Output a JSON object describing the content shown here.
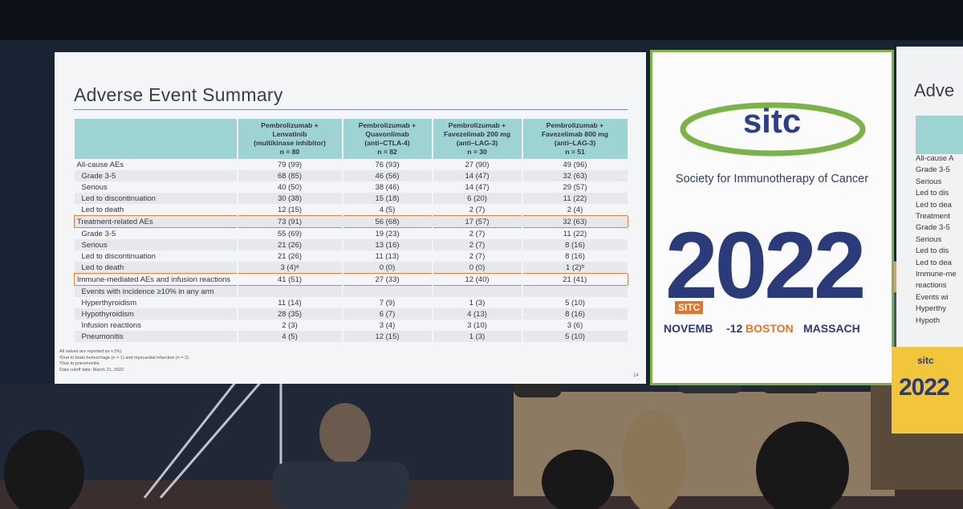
{
  "slide": {
    "title": "Adverse Event Summary",
    "table": {
      "header": [
        {
          "lines": [
            "Pembrolizumab +",
            "Lenvatinib",
            "(multikinase inhibitor)",
            "n = 80"
          ]
        },
        {
          "lines": [
            "Pembrolizumab +",
            "Quavonlimab",
            "(anti–CTLA-4)",
            "n = 82"
          ]
        },
        {
          "lines": [
            "Pembrolizumab +",
            "Favezelimab 200 mg",
            "(anti–LAG-3)",
            "n = 30"
          ]
        },
        {
          "lines": [
            "Pembrolizumab +",
            "Favezelimab 800 mg",
            "(anti–LAG-3)",
            "n = 51"
          ]
        }
      ],
      "rows": [
        {
          "label": "All-cause AEs",
          "indent": false,
          "boxed": false,
          "cells": [
            "79 (99)",
            "76 (93)",
            "27 (90)",
            "49 (96)"
          ]
        },
        {
          "label": "Grade 3-5",
          "indent": true,
          "boxed": false,
          "cells": [
            "68 (85)",
            "46 (56)",
            "14 (47)",
            "32 (63)"
          ]
        },
        {
          "label": "Serious",
          "indent": true,
          "boxed": false,
          "cells": [
            "40 (50)",
            "38 (46)",
            "14 (47)",
            "29 (57)"
          ]
        },
        {
          "label": "Led to discontinuation",
          "indent": true,
          "boxed": false,
          "cells": [
            "30 (38)",
            "15 (18)",
            "6 (20)",
            "11 (22)"
          ]
        },
        {
          "label": "Led to death",
          "indent": true,
          "boxed": false,
          "cells": [
            "12 (15)",
            "4 (5)",
            "2 (7)",
            "2 (4)"
          ]
        },
        {
          "label": "Treatment-related AEs",
          "indent": false,
          "boxed": true,
          "cells": [
            "73 (91)",
            "56 (68)",
            "17 (57)",
            "32 (63)"
          ]
        },
        {
          "label": "Grade 3-5",
          "indent": true,
          "boxed": false,
          "cells": [
            "55 (69)",
            "19 (23)",
            "2 (7)",
            "11 (22)"
          ]
        },
        {
          "label": "Serious",
          "indent": true,
          "boxed": false,
          "cells": [
            "21 (26)",
            "13 (16)",
            "2 (7)",
            "8 (16)"
          ]
        },
        {
          "label": "Led to discontinuation",
          "indent": true,
          "boxed": false,
          "cells": [
            "21 (26)",
            "11 (13)",
            "2 (7)",
            "8 (16)"
          ]
        },
        {
          "label": "Led to death",
          "indent": true,
          "boxed": false,
          "cells": [
            "3 (4)ᵃ",
            "0 (0)",
            "0 (0)",
            "1 (2)ᵇ"
          ]
        },
        {
          "label": "Immune-mediated AEs and infusion reactions",
          "indent": false,
          "boxed": true,
          "cells": [
            "41 (51)",
            "27 (33)",
            "12 (40)",
            "21 (41)"
          ]
        },
        {
          "label": "Events with incidence ≥10% in any arm",
          "indent": true,
          "boxed": false
        },
        {
          "label": "Hyperthyroidism",
          "indent": true,
          "boxed": false,
          "cells": [
            "11 (14)",
            "7 (9)",
            "1 (3)",
            "5 (10)"
          ]
        },
        {
          "label": "Hypothyroidism",
          "indent": true,
          "boxed": false,
          "cells": [
            "28 (35)",
            "6 (7)",
            "4 (13)",
            "8 (16)"
          ]
        },
        {
          "label": "Infusion reactions",
          "indent": true,
          "boxed": false,
          "cells": [
            "2 (3)",
            "3 (4)",
            "3 (10)",
            "3 (6)"
          ]
        },
        {
          "label": "Pneumonitis",
          "indent": true,
          "boxed": false,
          "cells": [
            "4 (5)",
            "12 (15)",
            "1 (3)",
            "5 (10)"
          ]
        }
      ]
    },
    "footnotes": [
      "All values are reported as n (%).",
      "ᵃDue to brain hemorrhage (n = 1) and myocardial infarction (n = 2).",
      "ᵇDue to pneumonitis.",
      "Data cutoff date: March 21, 2022"
    ],
    "page_number": "14"
  },
  "sitc_panel": {
    "logo": "sitc",
    "tagline": "Society for Immunotherapy of Cancer",
    "year": "2022",
    "badge": "SITC",
    "dates": [
      "NOVEMB",
      "-12",
      "BOSTON",
      "MASSACH"
    ]
  },
  "right_slide": {
    "title": "Adve",
    "rows": [
      "All-cause A",
      "Grade 3-5",
      "Serious",
      "Led to dis",
      "Led to dea",
      "Treatment",
      "Grade 3-5",
      "Serious",
      "Led to dis",
      "Led to dea",
      "Immune-me",
      "reactions",
      "Events wi",
      "Hyperthy",
      "Hypoth"
    ]
  },
  "podium": {
    "logo": "sitc",
    "year": "2022"
  }
}
